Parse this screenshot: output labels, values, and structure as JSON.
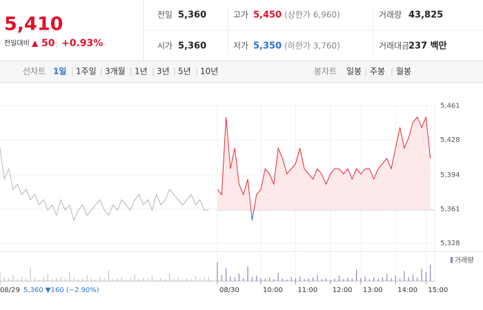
{
  "header": {
    "price": "5,410",
    "change_label": "전일대비",
    "change_arrow": "▲",
    "change": "50",
    "change_rate": "+0.93%",
    "stats": [
      [
        {
          "label": "전일",
          "value": "5,360"
        },
        {
          "label": "고가",
          "value": "5,450",
          "note": "(상한가 6,960)"
        },
        {
          "label": "거래량",
          "value": "43,825"
        }
      ],
      [
        {
          "label": "시가",
          "value": "5,360"
        },
        {
          "label": "저가",
          "value": "5,350",
          "note": "(하한가 3,760)"
        },
        {
          "label": "거래대금",
          "value": "237 백만"
        }
      ]
    ]
  },
  "tabs": {
    "line_label": "선차트",
    "line": [
      "1일",
      "1주일",
      "3개월",
      "1년",
      "3년",
      "5년",
      "10년"
    ],
    "candle_label": "봉차트",
    "candle": [
      "일봉",
      "주봉",
      "월봉"
    ]
  },
  "chart_data": {
    "type": "line",
    "prev_day_note": "5,360 ▼160 (−2.90%)",
    "baseline": 5360,
    "xlim": [
      0,
      100
    ],
    "xticks": [
      {
        "value": 0,
        "label": "08/29"
      },
      {
        "value": 50,
        "label": "08/30"
      },
      {
        "value": 60,
        "label": "10:00"
      },
      {
        "value": 68,
        "label": "11:00"
      },
      {
        "value": 76,
        "label": "12:00"
      },
      {
        "value": 83,
        "label": "13:00"
      },
      {
        "value": 91,
        "label": "14:00"
      },
      {
        "value": 98,
        "label": "15:00"
      }
    ],
    "ylim": [
      5320,
      5470
    ],
    "yticks": [
      {
        "value": 5328,
        "label": "5,328"
      },
      {
        "value": 5361,
        "label": "5,361"
      },
      {
        "value": 5394,
        "label": "5,394"
      },
      {
        "value": 5428,
        "label": "5,428"
      },
      {
        "value": 5461,
        "label": "5,461"
      }
    ],
    "grid": true,
    "series": [
      {
        "color": "#b4b6bb",
        "values": [
          5420,
          5390,
          5400,
          5380,
          5385,
          5375,
          5380,
          5370,
          5375,
          5365,
          5370,
          5360,
          5365,
          5355,
          5370,
          5360,
          5365,
          5350,
          5360,
          5365,
          5355,
          5360,
          5365,
          5370,
          5360,
          5355,
          5365,
          5360,
          5370,
          5365,
          5360,
          5370,
          5375,
          5365,
          5370,
          5360,
          5375,
          5365,
          5370,
          5380,
          5375,
          5370,
          5365,
          5370,
          5375,
          5365,
          5370,
          5360,
          5360,
          null,
          null,
          null,
          null,
          null,
          null,
          null,
          null,
          null,
          null,
          null,
          null,
          null,
          null,
          null,
          null,
          null,
          null,
          null,
          null,
          null,
          null,
          null,
          null,
          null,
          null,
          null,
          null,
          null,
          null,
          null,
          null,
          null,
          null,
          null,
          null,
          null,
          null,
          null,
          null,
          null,
          null,
          null,
          null,
          null,
          null,
          null,
          null,
          null,
          null,
          null
        ]
      },
      {
        "color": "#e8242f",
        "color_down": "#2a6fd6",
        "fill": "#fde3e5",
        "values": [
          null,
          null,
          null,
          null,
          null,
          null,
          null,
          null,
          null,
          null,
          null,
          null,
          null,
          null,
          null,
          null,
          null,
          null,
          null,
          null,
          null,
          null,
          null,
          null,
          null,
          null,
          null,
          null,
          null,
          null,
          null,
          null,
          null,
          null,
          null,
          null,
          null,
          null,
          null,
          null,
          null,
          null,
          null,
          null,
          null,
          null,
          null,
          null,
          null,
          null,
          5380,
          5375,
          5450,
          5400,
          5420,
          5385,
          5375,
          5390,
          5350,
          5375,
          5380,
          5400,
          5395,
          5385,
          5420,
          5410,
          5395,
          5400,
          5405,
          5420,
          5400,
          5395,
          5390,
          5400,
          5395,
          5385,
          5395,
          5400,
          5400,
          5395,
          5400,
          5390,
          5400,
          5395,
          5400,
          5400,
          5390,
          5400,
          5405,
          5410,
          5400,
          5420,
          5440,
          5420,
          5430,
          5445,
          5450,
          5440,
          5450,
          5410
        ]
      }
    ],
    "volume": {
      "name": "거래량",
      "color": "#8a7fc8",
      "color_prev": "#c4c5ca",
      "ylim": [
        0,
        5000
      ],
      "values": [
        2000,
        800,
        600,
        1200,
        400,
        900,
        500,
        2600,
        700,
        300,
        800,
        1500,
        400,
        600,
        900,
        500,
        1800,
        700,
        400,
        600,
        1100,
        500,
        300,
        900,
        600,
        2200,
        400,
        500,
        800,
        300,
        700,
        1300,
        400,
        600,
        500,
        900,
        300,
        700,
        400,
        1600,
        500,
        800,
        300,
        600,
        400,
        1000,
        500,
        700,
        900,
        0,
        3800,
        1200,
        2600,
        900,
        700,
        1500,
        600,
        2900,
        800,
        1100,
        600,
        500,
        700,
        400,
        1600,
        500,
        300,
        800,
        600,
        900,
        400,
        500,
        700,
        1200,
        400,
        600,
        300,
        500,
        1100,
        400,
        700,
        500,
        2300,
        600,
        900,
        400,
        800,
        500,
        700,
        1400,
        600,
        1100,
        500,
        2000,
        800,
        1300,
        700,
        2500,
        1800,
        3300
      ]
    }
  }
}
